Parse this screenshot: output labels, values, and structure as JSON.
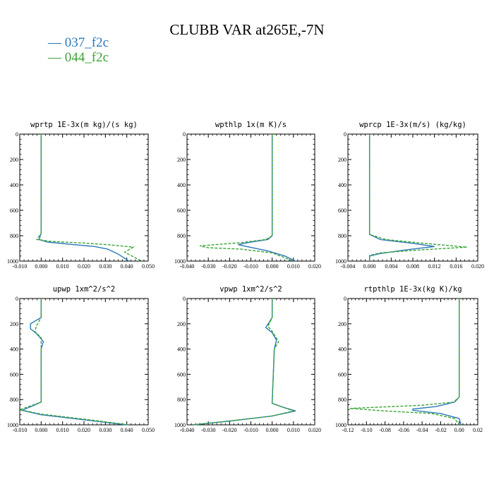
{
  "title": "CLUBB VAR at265E,-7N",
  "legend": [
    {
      "label": "— 037_f2c",
      "color": "#2a78b8"
    },
    {
      "label": "— 044_f2c",
      "color": "#3aa435"
    }
  ],
  "chart_data": [
    {
      "type": "line",
      "title": "wprtp  1E-3x(m kg)/(s kg)",
      "xlim": [
        -0.01,
        0.05
      ],
      "ylim": [
        1000,
        0
      ],
      "xticks": [
        "-0.010",
        "0.000",
        "0.010",
        "0.020",
        "0.030",
        "0.040",
        "0.050"
      ],
      "yticks": [
        "0",
        "200",
        "400",
        "600",
        "800",
        "1000"
      ],
      "series": [
        {
          "name": "037_f2c",
          "color": "#2a78b8",
          "dashed": false,
          "points": [
            [
              0,
              0
            ],
            [
              0,
              780
            ],
            [
              -0.001,
              830
            ],
            [
              0.003,
              850
            ],
            [
              0.015,
              870
            ],
            [
              0.025,
              885
            ],
            [
              0.031,
              905
            ],
            [
              0.036,
              945
            ],
            [
              0.041,
              1000
            ]
          ]
        },
        {
          "name": "044_f2c",
          "color": "#3aa435",
          "dashed": true,
          "points": [
            [
              0,
              0
            ],
            [
              0,
              780
            ],
            [
              -0.002,
              830
            ],
            [
              0.005,
              845
            ],
            [
              0.02,
              858
            ],
            [
              0.032,
              872
            ],
            [
              0.043,
              890
            ],
            [
              0.039,
              930
            ],
            [
              0.047,
              1000
            ]
          ]
        }
      ]
    },
    {
      "type": "line",
      "title": "wpthlp  1x(m K)/s",
      "xlim": [
        -0.04,
        0.02
      ],
      "ylim": [
        1000,
        0
      ],
      "xticks": [
        "-0.040",
        "-0.030",
        "-0.020",
        "-0.010",
        "0.000",
        "0.010",
        "0.020"
      ],
      "yticks": [
        "0",
        "200",
        "400",
        "600",
        "800",
        "1000"
      ],
      "series": [
        {
          "name": "037_f2c",
          "color": "#2a78b8",
          "dashed": false,
          "points": [
            [
              0,
              0
            ],
            [
              0,
              800
            ],
            [
              -0.002,
              830
            ],
            [
              -0.01,
              850
            ],
            [
              -0.016,
              870
            ],
            [
              -0.012,
              885
            ],
            [
              -0.002,
              920
            ],
            [
              0.006,
              960
            ],
            [
              0.011,
              1000
            ]
          ]
        },
        {
          "name": "044_f2c",
          "color": "#3aa435",
          "dashed": true,
          "points": [
            [
              0,
              0
            ],
            [
              0,
              800
            ],
            [
              -0.003,
              830
            ],
            [
              -0.015,
              855
            ],
            [
              -0.034,
              880
            ],
            [
              -0.03,
              895
            ],
            [
              -0.015,
              905
            ],
            [
              0,
              935
            ],
            [
              0.01,
              1000
            ]
          ]
        }
      ]
    },
    {
      "type": "line",
      "title": "wprcp  1E-3x(m/s) (kg/kg)",
      "xlim": [
        -0.004,
        0.02
      ],
      "ylim": [
        1000,
        0
      ],
      "xticks": [
        "-0.004",
        "0.000",
        "0.004",
        "0.008",
        "0.012",
        "0.016",
        "0.020"
      ],
      "yticks": [
        "0",
        "200",
        "400",
        "600",
        "800",
        "1000"
      ],
      "series": [
        {
          "name": "037_f2c",
          "color": "#2a78b8",
          "dashed": false,
          "points": [
            [
              0,
              0
            ],
            [
              0,
              790
            ],
            [
              0.002,
              830
            ],
            [
              0.008,
              860
            ],
            [
              0.012,
              885
            ],
            [
              0.007,
              910
            ],
            [
              0.002,
              940
            ],
            [
              0,
              960
            ],
            [
              0,
              1000
            ]
          ]
        },
        {
          "name": "044_f2c",
          "color": "#3aa435",
          "dashed": true,
          "points": [
            [
              0,
              0
            ],
            [
              0,
              790
            ],
            [
              0.003,
              830
            ],
            [
              0.01,
              860
            ],
            [
              0.018,
              890
            ],
            [
              0.01,
              910
            ],
            [
              0.002,
              935
            ],
            [
              0,
              955
            ],
            [
              0,
              1000
            ]
          ]
        }
      ]
    },
    {
      "type": "line",
      "title": "upwp  1xm^2/s^2",
      "xlim": [
        -0.01,
        0.05
      ],
      "ylim": [
        1000,
        0
      ],
      "xticks": [
        "-0.010",
        "0.000",
        "0.010",
        "0.020",
        "0.030",
        "0.040",
        "0.050"
      ],
      "yticks": [
        "0",
        "200",
        "400",
        "600",
        "800",
        "1000"
      ],
      "series": [
        {
          "name": "037_f2c",
          "color": "#2a78b8",
          "dashed": false,
          "points": [
            [
              0,
              0
            ],
            [
              0,
              150
            ],
            [
              -0.005,
              200
            ],
            [
              -0.005,
              240
            ],
            [
              -0.002,
              280
            ],
            [
              0.001,
              340
            ],
            [
              0,
              400
            ],
            [
              0,
              820
            ],
            [
              -0.004,
              850
            ],
            [
              -0.009,
              885
            ],
            [
              0,
              920
            ],
            [
              0.02,
              960
            ],
            [
              0.04,
              1000
            ]
          ]
        },
        {
          "name": "044_f2c",
          "color": "#3aa435",
          "dashed": true,
          "points": [
            [
              0,
              0
            ],
            [
              0,
              150
            ],
            [
              -0.002,
              210
            ],
            [
              -0.003,
              260
            ],
            [
              0,
              310
            ],
            [
              0,
              400
            ],
            [
              0,
              820
            ],
            [
              -0.005,
              850
            ],
            [
              -0.01,
              880
            ],
            [
              0,
              915
            ],
            [
              0.02,
              955
            ],
            [
              0.041,
              1000
            ]
          ]
        }
      ]
    },
    {
      "type": "line",
      "title": "vpwp  1xm^2/s^2",
      "xlim": [
        -0.04,
        0.02
      ],
      "ylim": [
        1000,
        0
      ],
      "xticks": [
        "-0.040",
        "-0.030",
        "-0.020",
        "-0.010",
        "0.000",
        "0.010",
        "0.020"
      ],
      "yticks": [
        "0",
        "200",
        "400",
        "600",
        "800",
        "1000"
      ],
      "series": [
        {
          "name": "037_f2c",
          "color": "#2a78b8",
          "dashed": false,
          "points": [
            [
              0,
              0
            ],
            [
              0,
              150
            ],
            [
              -0.003,
              230
            ],
            [
              0,
              270
            ],
            [
              0.002,
              330
            ],
            [
              0.001,
              400
            ],
            [
              0,
              830
            ],
            [
              0.005,
              860
            ],
            [
              0.011,
              890
            ],
            [
              0,
              930
            ],
            [
              -0.02,
              970
            ],
            [
              -0.037,
              1000
            ]
          ]
        },
        {
          "name": "044_f2c",
          "color": "#3aa435",
          "dashed": true,
          "points": [
            [
              0,
              0
            ],
            [
              0,
              150
            ],
            [
              -0.002,
              220
            ],
            [
              0,
              260
            ],
            [
              0.003,
              340
            ],
            [
              0.001,
              400
            ],
            [
              0,
              830
            ],
            [
              0.005,
              860
            ],
            [
              0.01,
              890
            ],
            [
              0,
              930
            ],
            [
              -0.02,
              970
            ],
            [
              -0.037,
              1000
            ]
          ]
        }
      ]
    },
    {
      "type": "line",
      "title": "rtpthlp  1E-3x(kg K)/kg",
      "xlim": [
        -0.12,
        0.02
      ],
      "ylim": [
        1000,
        0
      ],
      "xticks": [
        "-0.12",
        "-0.10",
        "-0.08",
        "-0.06",
        "-0.04",
        "-0.02",
        "0.00",
        "0.02"
      ],
      "yticks": [
        "0",
        "200",
        "400",
        "600",
        "800",
        "1000"
      ],
      "series": [
        {
          "name": "037_f2c",
          "color": "#2a78b8",
          "dashed": false,
          "points": [
            [
              0,
              0
            ],
            [
              0,
              780
            ],
            [
              -0.005,
              820
            ],
            [
              -0.025,
              855
            ],
            [
              -0.05,
              875
            ],
            [
              -0.05,
              885
            ],
            [
              -0.02,
              910
            ],
            [
              0,
              950
            ],
            [
              0.002,
              1000
            ]
          ]
        },
        {
          "name": "044_f2c",
          "color": "#3aa435",
          "dashed": true,
          "points": [
            [
              0,
              0
            ],
            [
              0,
              780
            ],
            [
              -0.006,
              820
            ],
            [
              -0.04,
              845
            ],
            [
              -0.118,
              870
            ],
            [
              -0.08,
              890
            ],
            [
              -0.03,
              910
            ],
            [
              -0.005,
              950
            ],
            [
              0,
              1000
            ]
          ]
        }
      ]
    }
  ]
}
